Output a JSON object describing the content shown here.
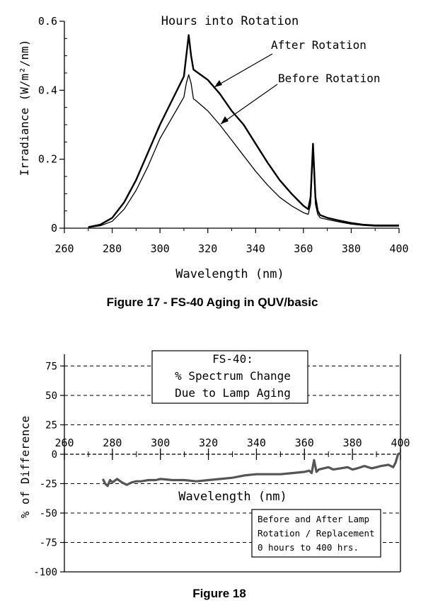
{
  "chart_data": [
    {
      "type": "line",
      "title": "Hours into Rotation",
      "caption": "Figure 17 - FS-40 Aging in QUV/basic",
      "xlabel": "Wavelength (nm)",
      "ylabel": "Irradiance (W/m²/nm)",
      "xlim": [
        260,
        400
      ],
      "ylim": [
        0,
        0.6
      ],
      "xticks": [
        260,
        280,
        300,
        320,
        340,
        360,
        380,
        400
      ],
      "yticks": [
        0,
        0.2,
        0.4,
        0.6
      ],
      "xtick_labels": [
        "260",
        "280",
        "300",
        "320",
        "340",
        "360",
        "380",
        "400"
      ],
      "ytick_labels": [
        "0",
        "0.2",
        "0.4",
        "0.6"
      ],
      "annotations": [
        "After Rotation",
        "Before Rotation"
      ],
      "x": [
        270,
        275,
        280,
        285,
        290,
        295,
        300,
        305,
        310,
        311,
        312,
        313,
        314,
        315,
        320,
        325,
        330,
        335,
        340,
        345,
        350,
        355,
        360,
        362,
        363,
        364,
        365,
        366,
        367,
        370,
        375,
        380,
        385,
        390,
        400
      ],
      "series": [
        {
          "name": "After Rotation",
          "values": [
            0.003,
            0.01,
            0.03,
            0.075,
            0.14,
            0.22,
            0.3,
            0.37,
            0.44,
            0.5,
            0.56,
            0.5,
            0.46,
            0.455,
            0.43,
            0.39,
            0.34,
            0.3,
            0.245,
            0.19,
            0.14,
            0.1,
            0.065,
            0.055,
            0.09,
            0.245,
            0.09,
            0.05,
            0.038,
            0.03,
            0.022,
            0.015,
            0.01,
            0.008,
            0.008
          ]
        },
        {
          "name": "Before Rotation",
          "values": [
            0.002,
            0.007,
            0.02,
            0.055,
            0.11,
            0.18,
            0.26,
            0.32,
            0.38,
            0.42,
            0.445,
            0.42,
            0.375,
            0.37,
            0.34,
            0.3,
            0.255,
            0.21,
            0.165,
            0.125,
            0.09,
            0.065,
            0.045,
            0.04,
            0.07,
            0.22,
            0.07,
            0.04,
            0.03,
            0.025,
            0.018,
            0.012,
            0.008,
            0.006,
            0.006
          ]
        }
      ]
    },
    {
      "type": "line",
      "title": "FS-40:\n% Spectrum Change\nDue to Lamp Aging",
      "caption": "Figure 18",
      "xlabel": "Wavelength (nm)",
      "ylabel": "% of Difference",
      "legend_note": "Before and After Lamp\nRotation / Replacement\n0 hours to 400 hrs.",
      "xlim": [
        260,
        400
      ],
      "ylim": [
        -100,
        85
      ],
      "grid": "dashed horizontal",
      "xticks": [
        260,
        280,
        300,
        320,
        340,
        360,
        380,
        400
      ],
      "yticks": [
        -100,
        -75,
        -50,
        -25,
        0,
        25,
        50,
        75
      ],
      "xtick_labels": [
        "260",
        "280",
        "300",
        "320",
        "340",
        "360",
        "380",
        "400"
      ],
      "ytick_labels": [
        "-100",
        "-75",
        "-50",
        "-25",
        "0",
        "25",
        "50",
        "75"
      ],
      "x": [
        276,
        277,
        278,
        279,
        280,
        282,
        284,
        286,
        288,
        290,
        292,
        295,
        298,
        300,
        305,
        310,
        315,
        320,
        325,
        330,
        335,
        340,
        345,
        350,
        355,
        360,
        362,
        363,
        364,
        365,
        366,
        368,
        370,
        372,
        375,
        378,
        380,
        382,
        385,
        388,
        390,
        392,
        395,
        397,
        398,
        399,
        400
      ],
      "series": [
        {
          "name": "Difference",
          "values": [
            -21,
            -25,
            -27,
            -22,
            -24,
            -21,
            -24,
            -26,
            -24,
            -23,
            -23,
            -22,
            -22,
            -21,
            -22,
            -22,
            -23,
            -22,
            -21,
            -20,
            -18,
            -17,
            -17,
            -17,
            -16,
            -15,
            -14,
            -16,
            -5,
            -15,
            -13,
            -12,
            -11,
            -13,
            -12,
            -11,
            -13,
            -12,
            -10,
            -12,
            -11,
            -10,
            -9,
            -11,
            -7,
            0,
            1
          ]
        }
      ]
    }
  ]
}
